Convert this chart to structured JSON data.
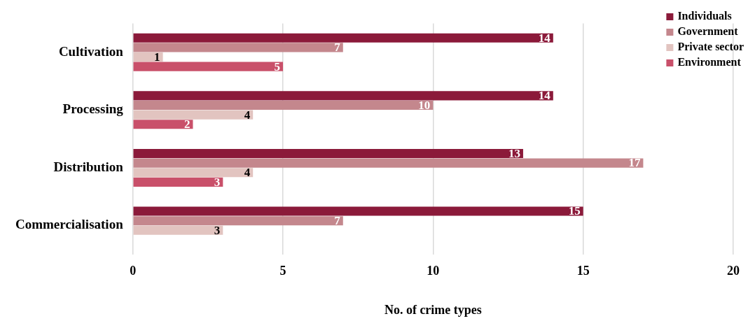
{
  "chart_data": {
    "type": "bar",
    "orientation": "horizontal",
    "xlabel": "No. of crime types",
    "categories": [
      "Cultivation",
      "Processing",
      "Distribution",
      "Commercialisation"
    ],
    "series": [
      {
        "name": "Individuals",
        "color": "#8b1a3a",
        "values": [
          14,
          14,
          13,
          15
        ]
      },
      {
        "name": "Government",
        "color": "#c4878d",
        "values": [
          7,
          10,
          17,
          7
        ]
      },
      {
        "name": "Private sector",
        "color": "#e2c4c0",
        "values": [
          1,
          4,
          4,
          3
        ]
      },
      {
        "name": "Environment",
        "color": "#c9506a",
        "values": [
          5,
          2,
          3,
          null
        ]
      }
    ],
    "xlim": [
      0,
      20
    ],
    "xticks": [
      0,
      5,
      10,
      15,
      20
    ],
    "grid": "x",
    "legend": "top right",
    "data_labels": true
  }
}
